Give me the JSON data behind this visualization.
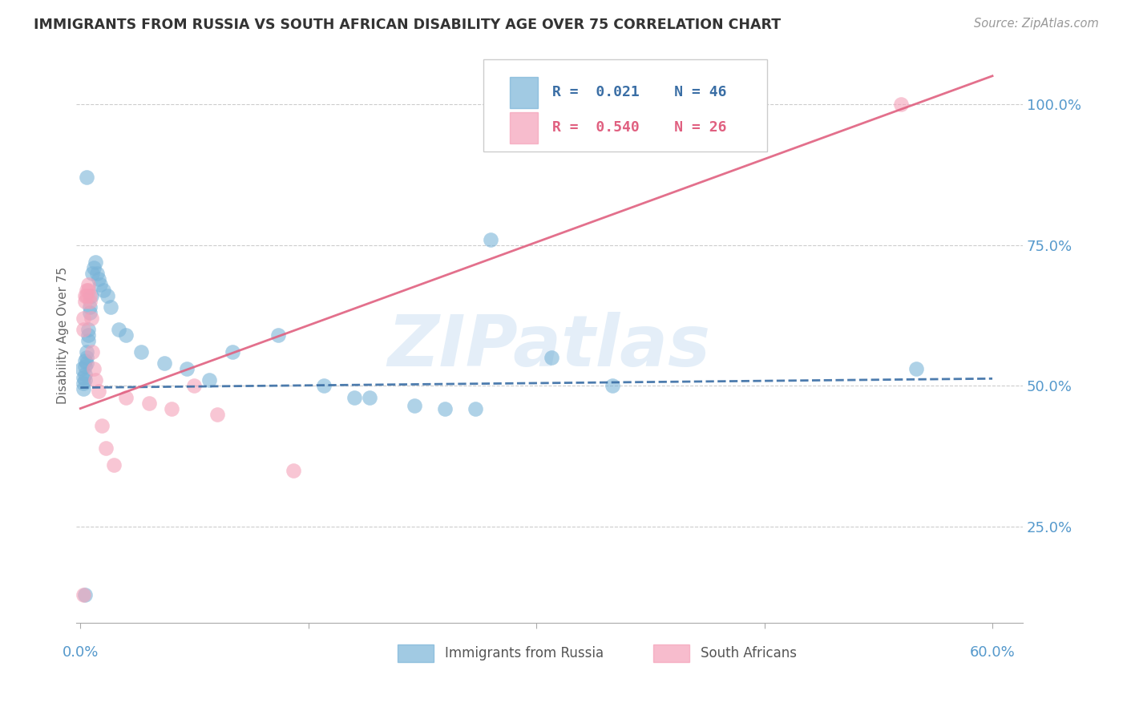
{
  "title": "IMMIGRANTS FROM RUSSIA VS SOUTH AFRICAN DISABILITY AGE OVER 75 CORRELATION CHART",
  "source": "Source: ZipAtlas.com",
  "ylabel": "Disability Age Over 75",
  "ytick_values": [
    0.25,
    0.5,
    0.75,
    1.0
  ],
  "ytick_labels": [
    "25.0%",
    "50.0%",
    "75.0%",
    "100.0%"
  ],
  "legend_entries": [
    {
      "label": "Immigrants from Russia",
      "color": "#7ab4d8",
      "R": "0.021",
      "N": "46"
    },
    {
      "label": "South Africans",
      "color": "#f4a0b8",
      "R": "0.540",
      "N": "26"
    }
  ],
  "xlim": [
    -0.003,
    0.62
  ],
  "ylim": [
    0.08,
    1.1
  ],
  "blue_x": [
    0.001,
    0.002,
    0.002,
    0.002,
    0.003,
    0.003,
    0.003,
    0.003,
    0.004,
    0.004,
    0.004,
    0.005,
    0.005,
    0.005,
    0.006,
    0.006,
    0.007,
    0.008,
    0.009,
    0.01,
    0.011,
    0.012,
    0.013,
    0.015,
    0.018,
    0.02,
    0.025,
    0.03,
    0.04,
    0.055,
    0.07,
    0.085,
    0.1,
    0.13,
    0.16,
    0.19,
    0.22,
    0.26,
    0.31,
    0.35,
    0.004,
    0.27,
    0.18,
    0.24,
    0.003,
    0.55
  ],
  "blue_y": [
    0.53,
    0.515,
    0.505,
    0.495,
    0.545,
    0.535,
    0.52,
    0.51,
    0.56,
    0.55,
    0.54,
    0.6,
    0.59,
    0.58,
    0.64,
    0.63,
    0.66,
    0.7,
    0.71,
    0.72,
    0.7,
    0.69,
    0.68,
    0.67,
    0.66,
    0.64,
    0.6,
    0.59,
    0.56,
    0.54,
    0.53,
    0.51,
    0.56,
    0.59,
    0.5,
    0.48,
    0.465,
    0.46,
    0.55,
    0.5,
    0.87,
    0.76,
    0.48,
    0.46,
    0.13,
    0.53
  ],
  "pink_x": [
    0.002,
    0.002,
    0.003,
    0.003,
    0.004,
    0.004,
    0.005,
    0.005,
    0.006,
    0.006,
    0.007,
    0.008,
    0.009,
    0.01,
    0.012,
    0.014,
    0.017,
    0.022,
    0.03,
    0.045,
    0.06,
    0.075,
    0.09,
    0.14,
    0.002,
    0.54
  ],
  "pink_y": [
    0.62,
    0.6,
    0.66,
    0.65,
    0.67,
    0.66,
    0.68,
    0.67,
    0.66,
    0.65,
    0.62,
    0.56,
    0.53,
    0.51,
    0.49,
    0.43,
    0.39,
    0.36,
    0.48,
    0.47,
    0.46,
    0.5,
    0.45,
    0.35,
    0.13,
    1.0
  ],
  "blue_line_x": [
    0.0,
    0.6
  ],
  "blue_line_y": [
    0.497,
    0.513
  ],
  "pink_line_x": [
    0.0,
    0.6
  ],
  "pink_line_y": [
    0.46,
    1.05
  ],
  "watermark": "ZIPatlas",
  "bg_color": "#ffffff",
  "grid_color": "#cccccc",
  "blue_color": "#7ab4d8",
  "pink_color": "#f4a0b8",
  "blue_line_color": "#3a6ea5",
  "pink_line_color": "#e06080",
  "axis_label_color": "#5599cc",
  "title_color": "#333333"
}
